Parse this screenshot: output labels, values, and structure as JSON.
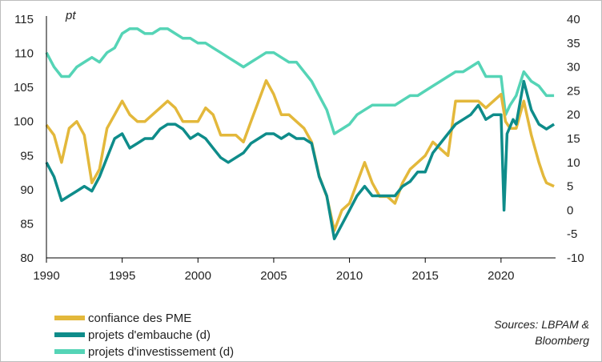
{
  "colors": {
    "sme_confidence": "#E3B83B",
    "hiring_plans": "#0E8C8A",
    "investment_plans": "#55D4B6",
    "axis": "#000000",
    "frame": "#BDBDBD"
  },
  "chart_data": {
    "type": "line",
    "left_axis_unit": "pt",
    "left_ylim": [
      80,
      115
    ],
    "left_yticks": [
      "80",
      "85",
      "90",
      "95",
      "100",
      "105",
      "110",
      "115"
    ],
    "right_ylim": [
      -10,
      40
    ],
    "right_yticks": [
      "-10",
      "-5",
      "0",
      "5",
      "10",
      "15",
      "20",
      "25",
      "30",
      "35",
      "40"
    ],
    "xlim": [
      1990,
      2023.6
    ],
    "xticks": [
      "1990",
      "1995",
      "2000",
      "2005",
      "2010",
      "2015",
      "2020"
    ],
    "grid": false,
    "legend_position": "bottom-left",
    "source_line1": "Sources: LBPAM &",
    "source_line2": "Bloomberg",
    "series": [
      {
        "name": "confiance des PME",
        "axis": "left",
        "points": [
          [
            1990,
            99.5
          ],
          [
            1990.5,
            98
          ],
          [
            1991,
            94
          ],
          [
            1991.5,
            99
          ],
          [
            1992,
            100
          ],
          [
            1992.5,
            98
          ],
          [
            1993,
            91
          ],
          [
            1993.5,
            93
          ],
          [
            1994,
            99
          ],
          [
            1994.5,
            101
          ],
          [
            1995,
            103
          ],
          [
            1995.5,
            101
          ],
          [
            1996,
            100
          ],
          [
            1996.5,
            100
          ],
          [
            1997,
            101
          ],
          [
            1997.5,
            102
          ],
          [
            1998,
            103
          ],
          [
            1998.5,
            102
          ],
          [
            1999,
            100
          ],
          [
            1999.5,
            100
          ],
          [
            2000,
            100
          ],
          [
            2000.5,
            102
          ],
          [
            2001,
            101
          ],
          [
            2001.5,
            98
          ],
          [
            2002,
            98
          ],
          [
            2002.5,
            98
          ],
          [
            2003,
            97
          ],
          [
            2003.5,
            100
          ],
          [
            2004,
            103
          ],
          [
            2004.5,
            106
          ],
          [
            2005,
            104
          ],
          [
            2005.5,
            101
          ],
          [
            2006,
            101
          ],
          [
            2006.5,
            100
          ],
          [
            2007,
            99
          ],
          [
            2007.5,
            97
          ],
          [
            2008,
            92
          ],
          [
            2008.5,
            89
          ],
          [
            2009,
            84
          ],
          [
            2009.5,
            87
          ],
          [
            2010,
            88
          ],
          [
            2010.5,
            91
          ],
          [
            2011,
            94
          ],
          [
            2011.5,
            91
          ],
          [
            2012,
            89
          ],
          [
            2012.5,
            89
          ],
          [
            2013,
            88
          ],
          [
            2013.5,
            91
          ],
          [
            2014,
            93
          ],
          [
            2014.5,
            94
          ],
          [
            2015,
            95
          ],
          [
            2015.5,
            97
          ],
          [
            2016,
            96
          ],
          [
            2016.5,
            95
          ],
          [
            2017,
            103
          ],
          [
            2017.5,
            103
          ],
          [
            2018,
            103
          ],
          [
            2018.5,
            103
          ],
          [
            2019,
            102
          ],
          [
            2019.5,
            103
          ],
          [
            2020,
            104
          ],
          [
            2020.3,
            100
          ],
          [
            2020.6,
            99
          ],
          [
            2021,
            99
          ],
          [
            2021.5,
            103
          ],
          [
            2022,
            98
          ],
          [
            2022.5,
            94
          ],
          [
            2022.8,
            92
          ],
          [
            2023,
            91
          ],
          [
            2023.5,
            90.5
          ]
        ]
      },
      {
        "name": "projets d'embauche (d)",
        "axis": "right",
        "points": [
          [
            1990,
            10
          ],
          [
            1990.5,
            7
          ],
          [
            1991,
            2
          ],
          [
            1991.5,
            3
          ],
          [
            1992,
            4
          ],
          [
            1992.5,
            5
          ],
          [
            1993,
            4
          ],
          [
            1993.5,
            7
          ],
          [
            1994,
            11
          ],
          [
            1994.5,
            15
          ],
          [
            1995,
            16
          ],
          [
            1995.5,
            13
          ],
          [
            1996,
            14
          ],
          [
            1996.5,
            15
          ],
          [
            1997,
            15
          ],
          [
            1997.5,
            17
          ],
          [
            1998,
            18
          ],
          [
            1998.5,
            18
          ],
          [
            1999,
            17
          ],
          [
            1999.5,
            15
          ],
          [
            2000,
            16
          ],
          [
            2000.5,
            15
          ],
          [
            2001,
            13
          ],
          [
            2001.5,
            11
          ],
          [
            2002,
            10
          ],
          [
            2002.5,
            11
          ],
          [
            2003,
            12
          ],
          [
            2003.5,
            14
          ],
          [
            2004,
            15
          ],
          [
            2004.5,
            16
          ],
          [
            2005,
            16
          ],
          [
            2005.5,
            15
          ],
          [
            2006,
            16
          ],
          [
            2006.5,
            15
          ],
          [
            2007,
            15
          ],
          [
            2007.5,
            14
          ],
          [
            2008,
            7
          ],
          [
            2008.5,
            3
          ],
          [
            2009,
            -6
          ],
          [
            2009.5,
            -3
          ],
          [
            2010,
            0
          ],
          [
            2010.5,
            3
          ],
          [
            2011,
            5
          ],
          [
            2011.5,
            3
          ],
          [
            2012,
            3
          ],
          [
            2012.5,
            3
          ],
          [
            2013,
            3
          ],
          [
            2013.5,
            5
          ],
          [
            2014,
            6
          ],
          [
            2014.5,
            8
          ],
          [
            2015,
            8
          ],
          [
            2015.5,
            12
          ],
          [
            2016,
            14
          ],
          [
            2016.5,
            16
          ],
          [
            2017,
            18
          ],
          [
            2017.5,
            19
          ],
          [
            2018,
            20
          ],
          [
            2018.5,
            22
          ],
          [
            2019,
            19
          ],
          [
            2019.5,
            20
          ],
          [
            2020,
            20
          ],
          [
            2020.2,
            0
          ],
          [
            2020.4,
            16
          ],
          [
            2020.8,
            19
          ],
          [
            2021,
            18
          ],
          [
            2021.5,
            27
          ],
          [
            2022,
            21
          ],
          [
            2022.5,
            18
          ],
          [
            2023,
            17
          ],
          [
            2023.5,
            18
          ]
        ]
      },
      {
        "name": "projets d'investissement (d)",
        "axis": "right",
        "points": [
          [
            1990,
            33
          ],
          [
            1990.5,
            30
          ],
          [
            1991,
            28
          ],
          [
            1991.5,
            28
          ],
          [
            1992,
            30
          ],
          [
            1992.5,
            31
          ],
          [
            1993,
            32
          ],
          [
            1993.5,
            31
          ],
          [
            1994,
            33
          ],
          [
            1994.5,
            34
          ],
          [
            1995,
            37
          ],
          [
            1995.5,
            38
          ],
          [
            1996,
            38
          ],
          [
            1996.5,
            37
          ],
          [
            1997,
            37
          ],
          [
            1997.5,
            38
          ],
          [
            1998,
            38
          ],
          [
            1998.5,
            37
          ],
          [
            1999,
            36
          ],
          [
            1999.5,
            36
          ],
          [
            2000,
            35
          ],
          [
            2000.5,
            35
          ],
          [
            2001,
            34
          ],
          [
            2001.5,
            33
          ],
          [
            2002,
            32
          ],
          [
            2002.5,
            31
          ],
          [
            2003,
            30
          ],
          [
            2003.5,
            31
          ],
          [
            2004,
            32
          ],
          [
            2004.5,
            33
          ],
          [
            2005,
            33
          ],
          [
            2005.5,
            32
          ],
          [
            2006,
            31
          ],
          [
            2006.5,
            31
          ],
          [
            2007,
            29
          ],
          [
            2007.5,
            27
          ],
          [
            2008,
            24
          ],
          [
            2008.5,
            21
          ],
          [
            2009,
            16
          ],
          [
            2009.5,
            17
          ],
          [
            2010,
            18
          ],
          [
            2010.5,
            20
          ],
          [
            2011,
            21
          ],
          [
            2011.5,
            22
          ],
          [
            2012,
            22
          ],
          [
            2012.5,
            22
          ],
          [
            2013,
            22
          ],
          [
            2013.5,
            23
          ],
          [
            2014,
            24
          ],
          [
            2014.5,
            24
          ],
          [
            2015,
            25
          ],
          [
            2015.5,
            26
          ],
          [
            2016,
            27
          ],
          [
            2016.5,
            28
          ],
          [
            2017,
            29
          ],
          [
            2017.5,
            29
          ],
          [
            2018,
            30
          ],
          [
            2018.5,
            31
          ],
          [
            2019,
            28
          ],
          [
            2019.5,
            28
          ],
          [
            2020,
            28
          ],
          [
            2020.3,
            20
          ],
          [
            2020.6,
            22
          ],
          [
            2021,
            24
          ],
          [
            2021.5,
            29
          ],
          [
            2022,
            27
          ],
          [
            2022.5,
            26
          ],
          [
            2023,
            24
          ],
          [
            2023.5,
            24
          ]
        ]
      }
    ]
  }
}
